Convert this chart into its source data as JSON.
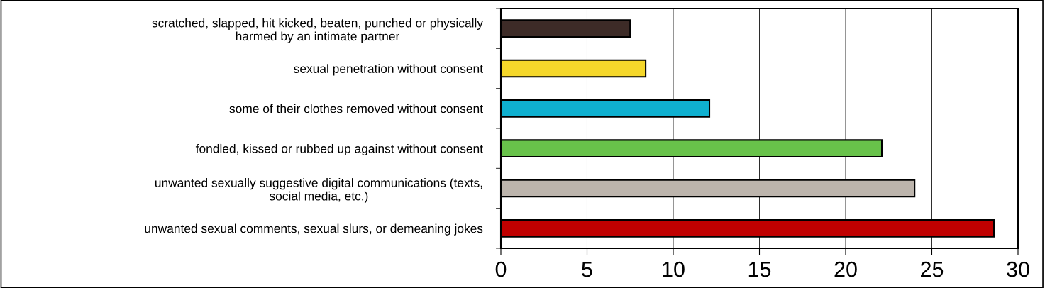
{
  "chart_data": {
    "type": "bar",
    "orientation": "horizontal",
    "categories": [
      "scratched, slapped, hit kicked, beaten, punched or physically\nharmed by an intimate partner",
      "sexual penetration without consent",
      "some of their clothes removed without consent",
      "fondled, kissed or rubbed up against without consent",
      "unwanted sexually suggestive digital communications (texts,\nsocial media, etc.)",
      "unwanted sexual comments, sexual slurs, or demeaning jokes"
    ],
    "values": [
      7.5,
      8.4,
      12.1,
      22.1,
      24.0,
      28.6
    ],
    "colors": [
      "#3d2b27",
      "#f5d72a",
      "#0fb0d0",
      "#68c24a",
      "#bcb4ac",
      "#c00000"
    ],
    "xlim": [
      0,
      30
    ],
    "xticks": [
      0,
      5,
      10,
      15,
      20,
      25,
      30
    ],
    "grid": "x"
  }
}
